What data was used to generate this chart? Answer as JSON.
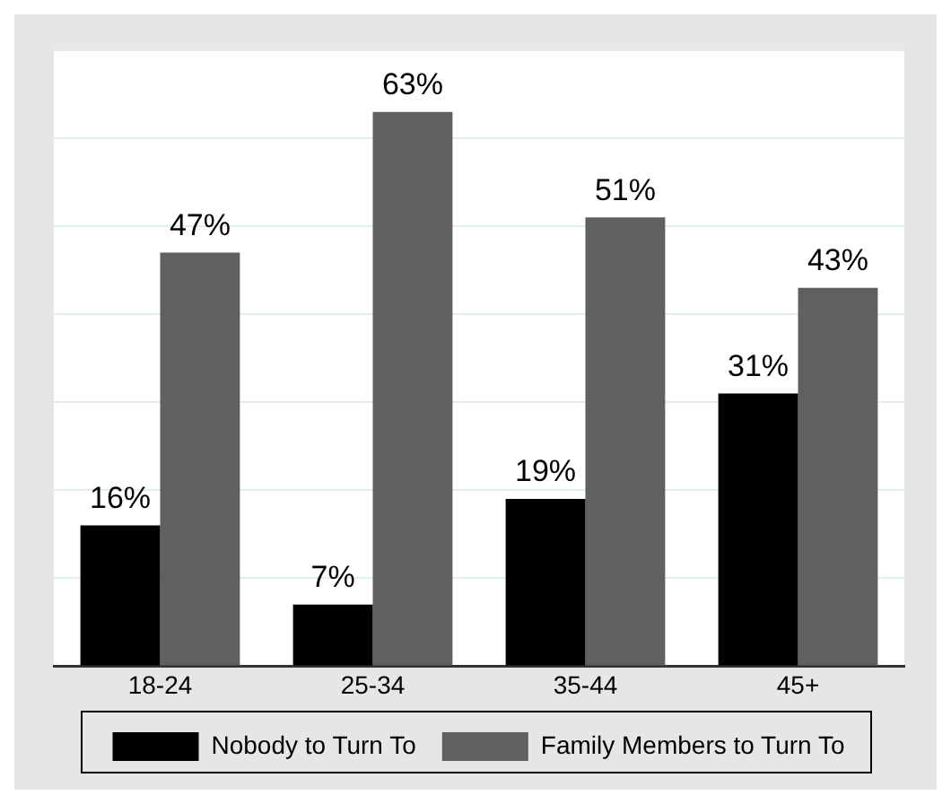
{
  "chart_data": {
    "type": "bar",
    "categories": [
      "18-24",
      "25-34",
      "35-44",
      "45+"
    ],
    "series": [
      {
        "name": "Nobody to Turn To",
        "color": "#000000",
        "values": [
          16,
          7,
          19,
          31
        ],
        "value_labels": [
          "16%",
          "7%",
          "19%",
          "31%"
        ]
      },
      {
        "name": "Family Members to Turn To",
        "color": "#606060",
        "values": [
          47,
          63,
          51,
          43
        ],
        "value_labels": [
          "47%",
          "63%",
          "51%",
          "43%"
        ]
      }
    ],
    "tick_labels": "x",
    "grid": "y",
    "legend": "bottom"
  }
}
